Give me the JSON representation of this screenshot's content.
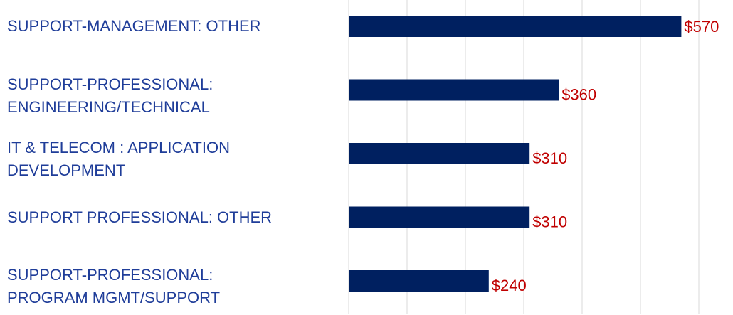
{
  "chart_data": {
    "type": "bar",
    "orientation": "horizontal",
    "categories": [
      "SUPPORT-MANAGEMENT: OTHER",
      "SUPPORT-PROFESSIONAL:\nENGINEERING/TECHNICAL",
      "IT & TELECOM : APPLICATION\nDEVELOPMENT",
      "SUPPORT PROFESSIONAL: OTHER",
      "SUPPORT-PROFESSIONAL:\nPROGRAM MGMT/SUPPORT"
    ],
    "values": [
      570,
      360,
      310,
      310,
      240
    ],
    "value_labels": [
      "$570",
      "$360",
      "$310",
      "$310",
      "$240"
    ],
    "color": "#002060",
    "label_color": "#c00000",
    "xlim": [
      0,
      600
    ],
    "xticks": [
      0,
      100,
      200,
      300,
      400,
      500,
      600
    ],
    "grid": true
  }
}
